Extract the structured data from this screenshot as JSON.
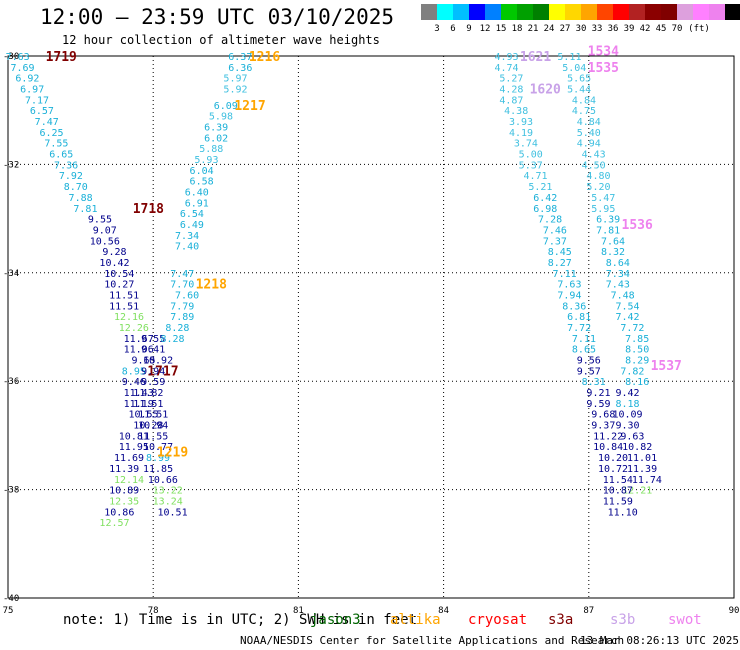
{
  "header": {
    "title": "12:00 – 23:59 UTC 03/10/2025",
    "subtitle": "12 hour collection of altimeter wave heights"
  },
  "colorbar": {
    "colors": [
      "#808080",
      "#00ffff",
      "#00bfff",
      "#0000ff",
      "#0080ff",
      "#00c800",
      "#00a000",
      "#008000",
      "#ffff00",
      "#ffd700",
      "#ffa500",
      "#ff4500",
      "#ff0000",
      "#b22222",
      "#8b0000",
      "#800000",
      "#dda0dd",
      "#ff80ff",
      "#ee82ee",
      "#000000"
    ],
    "labels": [
      "3",
      "6",
      "9",
      "12",
      "15",
      "18",
      "21",
      "24",
      "27",
      "30",
      "33",
      "36",
      "39",
      "42",
      "45",
      "70",
      "(ft)"
    ]
  },
  "footer": {
    "note": "note:  1) Time is in UTC; 2) SWH is in feet",
    "credit": "NOAA/NESDIS Center for Satellite Applications and Research",
    "generated": "13 Mar 08:26:13 UTC 2025"
  },
  "satellites": [
    {
      "name": "jason3",
      "color": "#006400"
    },
    {
      "name": "altika",
      "color": "#ffa500"
    },
    {
      "name": "cryosat",
      "color": "#ff0000"
    },
    {
      "name": "s3a",
      "color": "#800000"
    },
    {
      "name": "s3b",
      "color": "#c8a2e8"
    },
    {
      "name": "swot",
      "color": "#ee82ee"
    }
  ],
  "chart_data": {
    "type": "scatter",
    "xlim": [
      75,
      90
    ],
    "ylim": [
      -40,
      -30
    ],
    "xticks": [
      75,
      78,
      81,
      84,
      87,
      90
    ],
    "yticks": [
      -30,
      -32,
      -34,
      -36,
      -38,
      -40
    ],
    "grid": true,
    "value_colors": {
      "lt3": "#00bfff",
      "lt6": "#40c0e0",
      "lt9": "#1ab0d8",
      "lt12": "#00008b",
      "lt15": "#80e060"
    },
    "passes": [
      {
        "label": "1719",
        "sat": "s3a",
        "label_pos": [
          76.1,
          -30.0
        ],
        "points": [
          [
            75.2,
            -30.0,
            7.63
          ],
          [
            75.3,
            -30.2,
            7.69
          ],
          [
            75.4,
            -30.4,
            6.92
          ],
          [
            75.5,
            -30.6,
            6.97
          ],
          [
            75.6,
            -30.8,
            7.17
          ],
          [
            75.7,
            -31.0,
            6.57
          ],
          [
            75.8,
            -31.2,
            7.47
          ],
          [
            75.9,
            -31.4,
            6.25
          ],
          [
            76.0,
            -31.6,
            7.55
          ],
          [
            76.1,
            -31.8,
            6.65
          ],
          [
            76.2,
            -32.0,
            7.36
          ],
          [
            76.3,
            -32.2,
            7.92
          ],
          [
            76.4,
            -32.4,
            8.7
          ],
          [
            76.5,
            -32.6,
            7.88
          ],
          [
            76.6,
            -32.8,
            7.81
          ]
        ]
      },
      {
        "label": "1718",
        "sat": "s3a",
        "label_pos": [
          77.9,
          -32.8
        ],
        "points": [
          [
            76.9,
            -33.0,
            9.55
          ],
          [
            77.0,
            -33.2,
            9.07
          ],
          [
            77.0,
            -33.4,
            10.56
          ],
          [
            77.2,
            -33.6,
            9.28
          ],
          [
            77.2,
            -33.8,
            10.42
          ],
          [
            77.3,
            -34.0,
            10.54
          ],
          [
            77.3,
            -34.2,
            10.27
          ],
          [
            77.4,
            -34.4,
            11.51
          ],
          [
            77.4,
            -34.6,
            11.51
          ],
          [
            77.5,
            -34.8,
            12.16
          ],
          [
            77.6,
            -35.0,
            12.26
          ],
          [
            77.7,
            -35.2,
            11.67
          ],
          [
            77.7,
            -35.4,
            11.06
          ],
          [
            77.8,
            -35.6,
            9.65
          ]
        ]
      },
      {
        "label": "1717",
        "sat": "s3a",
        "label_pos": [
          78.2,
          -35.8
        ],
        "points": [
          [
            77.6,
            -35.8,
            8.95
          ],
          [
            77.6,
            -36.0,
            9.46
          ],
          [
            77.7,
            -36.2,
            11.43
          ],
          [
            77.7,
            -36.4,
            11.19
          ],
          [
            77.8,
            -36.6,
            10.55
          ],
          [
            77.9,
            -36.8,
            10.28
          ],
          [
            77.6,
            -37.0,
            10.81
          ],
          [
            77.6,
            -37.2,
            11.95
          ],
          [
            77.5,
            -37.4,
            11.69
          ],
          [
            77.4,
            -37.6,
            11.39
          ],
          [
            77.5,
            -37.8,
            12.14
          ],
          [
            77.4,
            -38.0,
            10.89
          ],
          [
            77.4,
            -38.2,
            12.35
          ],
          [
            77.3,
            -38.4,
            10.86
          ],
          [
            77.2,
            -38.6,
            12.57
          ]
        ]
      },
      {
        "label": "1219",
        "sat": "altika",
        "label_pos": [
          78.4,
          -37.3
        ],
        "points": [
          [
            78.0,
            -35.2,
            9.55
          ],
          [
            78.0,
            -35.4,
            9.41
          ],
          [
            78.1,
            -35.6,
            10.92
          ],
          [
            78.0,
            -35.8,
            9.94
          ],
          [
            78.0,
            -36.0,
            9.59
          ],
          [
            77.9,
            -36.2,
            11.82
          ],
          [
            77.9,
            -36.4,
            11.51
          ],
          [
            78.0,
            -36.6,
            11.51
          ],
          [
            78.0,
            -36.8,
            10.94
          ],
          [
            78.0,
            -37.0,
            11.55
          ],
          [
            78.1,
            -37.2,
            10.77
          ],
          [
            78.1,
            -37.4,
            8.99
          ],
          [
            78.1,
            -37.6,
            11.85
          ],
          [
            78.2,
            -37.8,
            10.66
          ],
          [
            78.3,
            -38.0,
            13.22
          ],
          [
            78.3,
            -38.2,
            13.24
          ],
          [
            78.4,
            -38.4,
            10.51
          ]
        ]
      },
      {
        "label": "1218",
        "sat": "altika",
        "label_pos": [
          79.2,
          -34.2
        ],
        "points": [
          [
            78.6,
            -34.0,
            7.47
          ],
          [
            78.6,
            -34.2,
            7.7
          ],
          [
            78.7,
            -34.4,
            7.6
          ],
          [
            78.6,
            -34.6,
            7.79
          ],
          [
            78.6,
            -34.8,
            7.89
          ],
          [
            78.5,
            -35.0,
            8.28
          ],
          [
            78.4,
            -35.2,
            8.28
          ]
        ]
      },
      {
        "label": "1217",
        "sat": "altika",
        "label_pos": [
          80.0,
          -30.9
        ],
        "points": [
          [
            79.5,
            -30.9,
            6.09
          ],
          [
            79.4,
            -31.1,
            5.98
          ],
          [
            79.3,
            -31.3,
            6.39
          ],
          [
            79.3,
            -31.5,
            6.02
          ],
          [
            79.2,
            -31.7,
            5.88
          ],
          [
            79.1,
            -31.9,
            5.93
          ],
          [
            79.0,
            -32.1,
            6.04
          ],
          [
            79.0,
            -32.3,
            6.58
          ],
          [
            78.9,
            -32.5,
            6.4
          ],
          [
            78.9,
            -32.7,
            6.91
          ],
          [
            78.8,
            -32.9,
            6.54
          ],
          [
            78.8,
            -33.1,
            6.49
          ],
          [
            78.7,
            -33.3,
            7.34
          ],
          [
            78.7,
            -33.5,
            7.4
          ]
        ]
      },
      {
        "label": "1216",
        "sat": "altika",
        "label_pos": [
          80.3,
          -30.0
        ],
        "points": [
          [
            79.8,
            -30.0,
            6.37
          ],
          [
            79.8,
            -30.2,
            6.36
          ],
          [
            79.7,
            -30.4,
            5.97
          ],
          [
            79.7,
            -30.6,
            5.92
          ]
        ]
      },
      {
        "label": "1534",
        "sat": "swot",
        "label_pos": [
          87.3,
          -29.9
        ],
        "points": [
          [
            86.6,
            -30.0,
            5.11
          ],
          [
            86.7,
            -30.2,
            5.04
          ],
          [
            86.8,
            -30.4,
            5.65
          ],
          [
            86.8,
            -30.6,
            5.44
          ],
          [
            86.9,
            -30.8,
            4.84
          ],
          [
            86.9,
            -31.0,
            4.75
          ],
          [
            87.0,
            -31.2,
            4.84
          ],
          [
            87.0,
            -31.4,
            5.4
          ],
          [
            87.0,
            -31.6,
            4.94
          ],
          [
            87.1,
            -31.8,
            4.43
          ],
          [
            87.1,
            -32.0,
            4.5
          ],
          [
            87.2,
            -32.2,
            4.8
          ],
          [
            87.2,
            -32.4,
            5.2
          ],
          [
            87.3,
            -32.6,
            5.47
          ],
          [
            87.3,
            -32.8,
            5.95
          ],
          [
            87.4,
            -33.0,
            6.39
          ],
          [
            87.4,
            -33.2,
            7.81
          ],
          [
            87.5,
            -33.4,
            7.64
          ],
          [
            87.5,
            -33.6,
            8.32
          ],
          [
            87.6,
            -33.8,
            8.64
          ],
          [
            87.6,
            -34.0,
            7.34
          ],
          [
            87.6,
            -34.2,
            7.43
          ],
          [
            87.7,
            -34.4,
            7.48
          ],
          [
            87.8,
            -34.6,
            7.54
          ],
          [
            87.8,
            -34.8,
            7.42
          ],
          [
            87.9,
            -35.0,
            7.72
          ],
          [
            88.0,
            -35.2,
            7.85
          ],
          [
            88.0,
            -35.4,
            8.5
          ],
          [
            88.0,
            -35.6,
            8.29
          ],
          [
            87.9,
            -35.8,
            7.82
          ],
          [
            88.0,
            -36.0,
            8.16
          ],
          [
            87.8,
            -36.2,
            9.42
          ],
          [
            87.8,
            -36.4,
            8.18
          ],
          [
            87.8,
            -36.6,
            10.09
          ],
          [
            87.8,
            -36.8,
            9.3
          ],
          [
            87.9,
            -37.0,
            9.63
          ],
          [
            88.0,
            -37.2,
            10.82
          ],
          [
            88.1,
            -37.4,
            11.01
          ],
          [
            88.1,
            -37.6,
            11.39
          ],
          [
            88.2,
            -37.8,
            11.74
          ],
          [
            88.0,
            -38.0,
            12.21
          ]
        ]
      },
      {
        "label": "1535",
        "sat": "swot",
        "label_pos": [
          87.3,
          -30.2
        ],
        "points": []
      },
      {
        "label": "1536",
        "sat": "swot",
        "label_pos": [
          88.0,
          -33.1
        ],
        "points": []
      },
      {
        "label": "1537",
        "sat": "swot",
        "label_pos": [
          88.6,
          -35.7
        ],
        "points": []
      },
      {
        "label": "1621",
        "sat": "s3b",
        "label_pos": [
          85.9,
          -30.0
        ],
        "points": [
          [
            85.3,
            -30.0,
            4.93
          ],
          [
            85.3,
            -30.2,
            4.74
          ],
          [
            85.4,
            -30.4,
            5.27
          ],
          [
            85.4,
            -30.6,
            4.28
          ],
          [
            85.4,
            -30.8,
            4.87
          ],
          [
            85.5,
            -31.0,
            4.38
          ],
          [
            85.6,
            -31.2,
            3.93
          ],
          [
            85.6,
            -31.4,
            4.19
          ],
          [
            85.7,
            -31.6,
            3.74
          ],
          [
            85.8,
            -31.8,
            5.0
          ],
          [
            85.8,
            -32.0,
            5.37
          ],
          [
            85.9,
            -32.2,
            4.71
          ],
          [
            86.0,
            -32.4,
            5.21
          ],
          [
            86.1,
            -32.6,
            6.42
          ],
          [
            86.1,
            -32.8,
            6.98
          ],
          [
            86.2,
            -33.0,
            7.28
          ],
          [
            86.3,
            -33.2,
            7.46
          ],
          [
            86.3,
            -33.4,
            7.37
          ],
          [
            86.4,
            -33.6,
            8.45
          ],
          [
            86.4,
            -33.8,
            8.27
          ],
          [
            86.5,
            -34.0,
            7.11
          ],
          [
            86.6,
            -34.2,
            7.63
          ],
          [
            86.6,
            -34.4,
            7.94
          ],
          [
            86.7,
            -34.6,
            8.36
          ],
          [
            86.8,
            -34.8,
            6.81
          ],
          [
            86.8,
            -35.0,
            7.72
          ],
          [
            86.9,
            -35.2,
            7.11
          ],
          [
            86.9,
            -35.4,
            8.65
          ],
          [
            87.0,
            -35.6,
            9.56
          ],
          [
            87.0,
            -35.8,
            9.57
          ],
          [
            87.1,
            -36.0,
            8.31
          ],
          [
            87.2,
            -36.2,
            9.21
          ],
          [
            87.2,
            -36.4,
            9.59
          ],
          [
            87.3,
            -36.6,
            9.68
          ],
          [
            87.3,
            -36.8,
            9.37
          ],
          [
            87.4,
            -37.0,
            11.22
          ],
          [
            87.4,
            -37.2,
            10.84
          ],
          [
            87.5,
            -37.4,
            10.2
          ],
          [
            87.5,
            -37.6,
            10.72
          ],
          [
            87.6,
            -37.8,
            11.54
          ],
          [
            87.6,
            -38.0,
            10.87
          ],
          [
            87.6,
            -38.2,
            11.59
          ],
          [
            87.7,
            -38.4,
            11.1
          ]
        ]
      },
      {
        "label": "1620",
        "sat": "s3b",
        "label_pos": [
          86.1,
          -30.6
        ],
        "points": []
      }
    ]
  }
}
